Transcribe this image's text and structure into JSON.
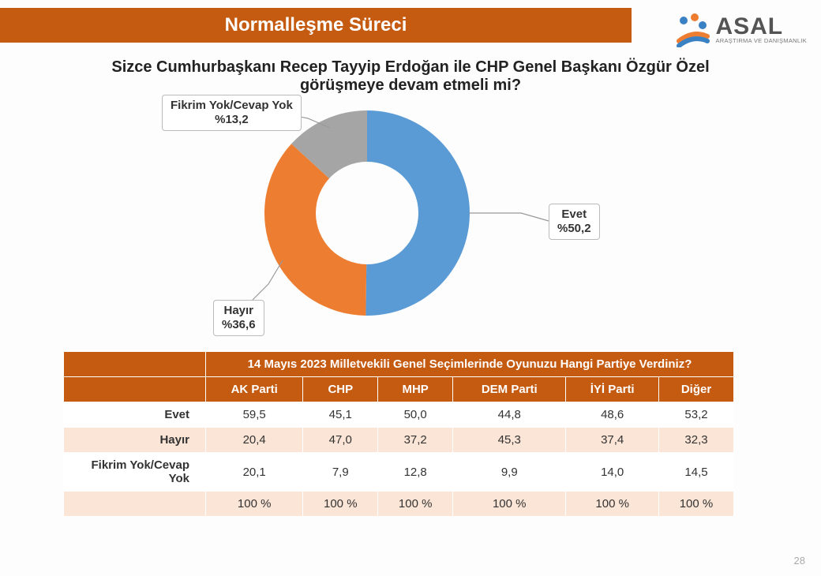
{
  "header": {
    "title": "Normalleşme Süreci",
    "title_bg": "#c55a11",
    "title_color": "#ffffff"
  },
  "logo": {
    "main": "ASAL",
    "sub": "ARAŞTIRMA VE DANIŞMANLIK",
    "dot_colors": [
      "#3a81c4",
      "#ed7d31",
      "#3a81c4"
    ],
    "swoosh_color": "#ed7d31"
  },
  "question": "Sizce Cumhurbaşkanı Recep Tayyip Erdoğan ile CHP Genel Başkanı Özgür Özel görüşmeye devam etmeli mi?",
  "donut": {
    "type": "pie",
    "inner_ratio": 0.5,
    "background": "#ffffff",
    "slices": [
      {
        "label": "Evet",
        "pct_text": "%50,2",
        "value": 50.2,
        "color": "#5b9bd5"
      },
      {
        "label": "Hayır",
        "pct_text": "%36,6",
        "value": 36.6,
        "color": "#ed7d31"
      },
      {
        "label": "Fikrim Yok/Cevap Yok",
        "pct_text": "%13,2",
        "value": 13.2,
        "color": "#a5a5a5"
      }
    ]
  },
  "callouts": {
    "evet": {
      "line1": "Evet",
      "line2": "%50,2"
    },
    "hayir": {
      "line1": "Hayır",
      "line2": "%36,6"
    },
    "fikrim": {
      "line1": "Fikrim Yok/Cevap Yok",
      "line2": "%13,2"
    }
  },
  "table": {
    "header_bg": "#c55a11",
    "header_color": "#ffffff",
    "row_alt_bg": "#fbe5d6",
    "title": "14 Mayıs 2023 Milletvekili Genel Seçimlerinde Oyunuzu Hangi Partiye Verdiniz?",
    "columns": [
      "AK Parti",
      "CHP",
      "MHP",
      "DEM Parti",
      "İYİ Parti",
      "Diğer"
    ],
    "rows": [
      {
        "label": "Evet",
        "cells": [
          "59,5",
          "45,1",
          "50,0",
          "44,8",
          "48,6",
          "53,2"
        ]
      },
      {
        "label": "Hayır",
        "cells": [
          "20,4",
          "47,0",
          "37,2",
          "45,3",
          "37,4",
          "32,3"
        ]
      },
      {
        "label": "Fikrim Yok/Cevap Yok",
        "cells": [
          "20,1",
          "7,9",
          "12,8",
          "9,9",
          "14,0",
          "14,5"
        ]
      }
    ],
    "totals": [
      "100 %",
      "100 %",
      "100 %",
      "100 %",
      "100 %",
      "100 %"
    ]
  },
  "page_number": "28"
}
